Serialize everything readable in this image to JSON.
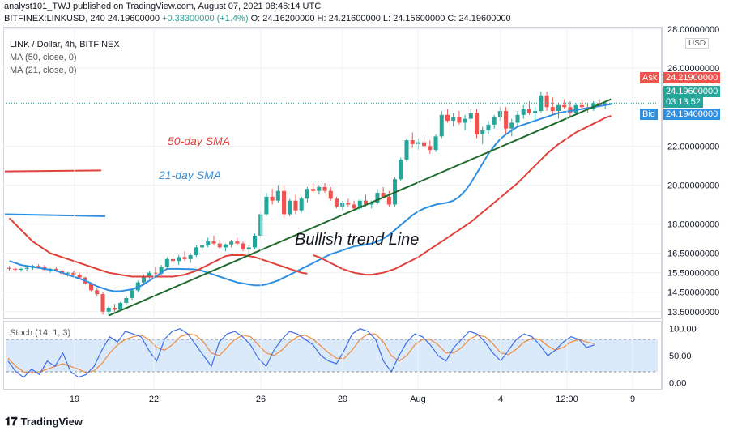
{
  "header": {
    "line1_prefix": "analyst101_TWJ published on TradingView.com, August 07, 2021 08:46:14 UTC",
    "line2_symbol": "BITFINEX:LINKUSD, 240",
    "line2_price": "24.19600000",
    "line2_change": "+0.33300000 (+1.4%)",
    "line2_ohlc": "O: 24.16200000 H: 24.21600000 L: 24.15600000 C: 24.19600000"
  },
  "legend": {
    "title": "LINK / Dollar, 4h, BITFINEX",
    "ma50": "MA (50, close, 0)",
    "ma21": "MA (21, close, 0)",
    "stoch": "Stoch (14, 1, 3)"
  },
  "annotations": {
    "sma50": "50-day SMA",
    "sma21": "21-day SMA",
    "trend": "Bullish trend Line"
  },
  "price_axis": {
    "unit": "USD",
    "ticks": [
      "28.00000000",
      "26.00000000",
      "22.00000000",
      "20.00000000",
      "18.00000000",
      "16.50000000",
      "15.50000000",
      "14.50000000",
      "13.50000000"
    ],
    "ask_label": "Ask",
    "ask_value": "24.21900000",
    "last_value": "24.19600000",
    "countdown": "03:13:52",
    "bid_label": "Bid",
    "bid_value": "24.19400000"
  },
  "stoch_axis": {
    "ticks": [
      "100.00",
      "50.00",
      "0.00"
    ]
  },
  "time_axis": {
    "ticks": [
      "19",
      "22",
      "26",
      "29",
      "Aug",
      "4",
      "12:00",
      "9"
    ]
  },
  "logo": "TradingView",
  "colors": {
    "up": "#26a69a",
    "down": "#ef5350",
    "ma50": "#e0413a",
    "ma21": "#2e8ee0",
    "trend": "#1f6b2c",
    "stoch_k": "#3d6ee8",
    "stoch_d": "#f08a3c",
    "stoch_band": "#dbeafb",
    "ask": "#ef5350",
    "last": "#26a69a",
    "bid": "#2e8ee0"
  },
  "chart_data": {
    "type": "candlestick",
    "title": "LINK / Dollar, 4h, BITFINEX",
    "price_range": [
      13.2,
      28.0
    ],
    "candles": [
      [
        15.75,
        15.85,
        15.6,
        15.7
      ],
      [
        15.7,
        15.8,
        15.55,
        15.65
      ],
      [
        15.65,
        15.75,
        15.55,
        15.7
      ],
      [
        15.7,
        15.8,
        15.6,
        15.75
      ],
      [
        15.75,
        15.9,
        15.65,
        15.85
      ],
      [
        15.85,
        15.95,
        15.7,
        15.8
      ],
      [
        15.8,
        15.9,
        15.6,
        15.65
      ],
      [
        15.65,
        15.75,
        15.5,
        15.7
      ],
      [
        15.7,
        15.8,
        15.55,
        15.6
      ],
      [
        15.6,
        15.7,
        15.4,
        15.45
      ],
      [
        15.45,
        15.55,
        15.3,
        15.5
      ],
      [
        15.5,
        15.6,
        15.35,
        15.4
      ],
      [
        15.4,
        15.5,
        15.2,
        15.25
      ],
      [
        15.25,
        15.3,
        14.9,
        14.95
      ],
      [
        14.95,
        15.0,
        14.55,
        14.6
      ],
      [
        14.6,
        14.7,
        14.3,
        14.4
      ],
      [
        14.4,
        14.5,
        13.35,
        13.5
      ],
      [
        13.5,
        13.8,
        13.3,
        13.7
      ],
      [
        13.7,
        13.9,
        13.5,
        13.6
      ],
      [
        13.6,
        14.0,
        13.55,
        13.95
      ],
      [
        13.95,
        14.3,
        13.85,
        14.2
      ],
      [
        14.2,
        14.7,
        14.1,
        14.6
      ],
      [
        14.6,
        15.1,
        14.5,
        15.0
      ],
      [
        15.0,
        15.4,
        14.9,
        15.3
      ],
      [
        15.3,
        15.6,
        15.2,
        15.5
      ],
      [
        15.5,
        15.8,
        15.35,
        15.45
      ],
      [
        15.45,
        15.9,
        15.4,
        15.8
      ],
      [
        15.8,
        16.3,
        15.7,
        16.2
      ],
      [
        16.2,
        16.5,
        16.0,
        16.1
      ],
      [
        16.1,
        16.4,
        15.9,
        16.3
      ],
      [
        16.3,
        16.6,
        16.1,
        16.2
      ],
      [
        16.2,
        16.5,
        16.0,
        16.4
      ],
      [
        16.4,
        16.9,
        16.3,
        16.8
      ],
      [
        16.8,
        17.2,
        16.6,
        16.9
      ],
      [
        16.9,
        17.3,
        16.8,
        17.1
      ],
      [
        17.1,
        17.4,
        16.9,
        17.0
      ],
      [
        17.0,
        17.2,
        16.7,
        16.8
      ],
      [
        16.8,
        17.0,
        16.6,
        16.95
      ],
      [
        16.95,
        17.2,
        16.8,
        17.1
      ],
      [
        17.1,
        17.3,
        16.9,
        17.0
      ],
      [
        17.0,
        17.1,
        16.6,
        16.7
      ],
      [
        16.7,
        16.9,
        16.5,
        16.8
      ],
      [
        16.8,
        17.5,
        16.7,
        17.4
      ],
      [
        17.4,
        18.6,
        17.3,
        18.5
      ],
      [
        18.5,
        19.6,
        18.4,
        19.4
      ],
      [
        19.4,
        19.8,
        19.0,
        19.2
      ],
      [
        19.2,
        20.0,
        19.1,
        19.7
      ],
      [
        19.7,
        20.0,
        18.3,
        18.5
      ],
      [
        18.5,
        19.3,
        18.4,
        19.2
      ],
      [
        19.2,
        19.5,
        18.5,
        18.7
      ],
      [
        18.7,
        19.4,
        18.6,
        19.3
      ],
      [
        19.3,
        19.9,
        19.1,
        19.8
      ],
      [
        19.8,
        20.1,
        19.6,
        19.7
      ],
      [
        19.7,
        20.0,
        19.5,
        19.9
      ],
      [
        19.9,
        20.1,
        19.6,
        19.7
      ],
      [
        19.7,
        19.9,
        19.2,
        19.3
      ],
      [
        19.3,
        19.4,
        18.8,
        18.9
      ],
      [
        18.9,
        19.2,
        18.7,
        19.1
      ],
      [
        19.1,
        19.3,
        18.9,
        19.0
      ],
      [
        19.0,
        19.2,
        18.7,
        18.8
      ],
      [
        18.8,
        19.3,
        18.7,
        19.2
      ],
      [
        19.2,
        19.5,
        18.9,
        19.0
      ],
      [
        19.0,
        19.2,
        18.8,
        19.1
      ],
      [
        19.1,
        19.8,
        19.0,
        19.6
      ],
      [
        19.6,
        19.9,
        19.3,
        19.4
      ],
      [
        19.4,
        19.7,
        18.9,
        19.0
      ],
      [
        19.0,
        20.4,
        18.9,
        20.3
      ],
      [
        20.3,
        21.4,
        20.2,
        21.3
      ],
      [
        21.3,
        22.4,
        21.2,
        22.3
      ],
      [
        22.3,
        22.7,
        21.9,
        22.1
      ],
      [
        22.1,
        22.4,
        21.8,
        22.2
      ],
      [
        22.2,
        22.6,
        21.9,
        22.0
      ],
      [
        22.0,
        22.3,
        21.6,
        21.8
      ],
      [
        21.8,
        22.6,
        21.7,
        22.5
      ],
      [
        22.5,
        23.8,
        22.4,
        23.6
      ],
      [
        23.6,
        23.9,
        23.2,
        23.3
      ],
      [
        23.3,
        23.7,
        23.0,
        23.5
      ],
      [
        23.5,
        23.8,
        23.1,
        23.2
      ],
      [
        23.2,
        23.6,
        22.8,
        23.4
      ],
      [
        23.4,
        23.9,
        23.2,
        23.7
      ],
      [
        23.7,
        23.9,
        22.4,
        22.6
      ],
      [
        22.6,
        23.0,
        22.1,
        22.8
      ],
      [
        22.8,
        23.3,
        22.6,
        23.1
      ],
      [
        23.1,
        23.6,
        22.9,
        23.5
      ],
      [
        23.5,
        24.0,
        23.3,
        23.8
      ],
      [
        23.8,
        24.0,
        22.6,
        22.9
      ],
      [
        22.9,
        23.4,
        22.5,
        23.2
      ],
      [
        23.2,
        23.8,
        23.0,
        23.6
      ],
      [
        23.6,
        24.1,
        23.4,
        23.9
      ],
      [
        23.9,
        24.3,
        23.6,
        23.7
      ],
      [
        23.7,
        24.0,
        23.3,
        23.8
      ],
      [
        23.8,
        24.8,
        23.7,
        24.6
      ],
      [
        24.6,
        24.8,
        23.8,
        24.0
      ],
      [
        24.0,
        24.5,
        23.6,
        23.8
      ],
      [
        23.8,
        24.2,
        23.4,
        24.1
      ],
      [
        24.1,
        24.4,
        23.9,
        24.0
      ],
      [
        24.0,
        24.3,
        23.5,
        23.7
      ],
      [
        23.7,
        24.2,
        23.6,
        24.1
      ],
      [
        24.1,
        24.4,
        23.9,
        24.0
      ],
      [
        24.0,
        24.2,
        23.7,
        23.9
      ],
      [
        23.9,
        24.3,
        23.8,
        24.2
      ],
      [
        24.2,
        24.4,
        24.0,
        24.1
      ],
      [
        24.1,
        24.3,
        23.9,
        24.2
      ],
      [
        24.16,
        24.216,
        24.156,
        24.196
      ]
    ],
    "ma21": [
      15.7,
      15.7,
      15.69,
      15.68,
      15.66,
      15.6,
      15.5,
      15.4,
      15.3,
      15.2,
      15.1,
      15.0,
      14.95,
      14.9,
      14.85,
      14.85,
      14.9,
      15.0,
      15.1,
      15.25,
      15.4,
      15.55,
      15.7,
      15.85,
      16.0,
      16.15,
      16.3,
      16.45,
      16.55,
      16.65,
      16.75,
      16.85,
      16.9,
      16.95,
      17.0,
      17.1,
      17.25,
      17.45,
      17.7,
      17.95,
      18.2,
      18.45,
      18.65,
      18.8,
      18.9,
      19.0,
      19.05,
      19.1,
      19.2,
      19.4,
      19.7,
      20.1,
      20.6,
      21.1,
      21.6,
      22.0,
      22.35,
      22.6,
      22.8,
      23.0,
      23.1,
      23.2,
      23.3,
      23.4,
      23.5,
      23.6,
      23.7,
      23.75,
      23.8,
      23.85,
      23.9,
      23.95,
      24.0,
      24.05,
      24.1,
      24.15
    ],
    "ma21_start": 28,
    "ma50": [
      16.4,
      16.3,
      16.15,
      16.0,
      15.85,
      15.7,
      15.6,
      15.5,
      15.45,
      15.4,
      15.4,
      15.45,
      15.5,
      15.6,
      15.7,
      15.85,
      16.0,
      16.15,
      16.3,
      16.5,
      16.7,
      16.9,
      17.1,
      17.3,
      17.5,
      17.7,
      17.9,
      18.1,
      18.35,
      18.6,
      18.85,
      19.1,
      19.35,
      19.6,
      19.85,
      20.1,
      20.4,
      20.7,
      21.0,
      21.3,
      21.6,
      21.85,
      22.1,
      22.3,
      22.5,
      22.7,
      22.85,
      23.0,
      23.15,
      23.3,
      23.45,
      23.55
    ],
    "ma50_start": 52,
    "trend_line": [
      [
        17,
        13.3
      ],
      [
        103,
        24.4
      ]
    ],
    "stoch": {
      "range": [
        -10,
        110
      ],
      "bands": [
        80,
        20
      ],
      "k": [
        40,
        20,
        10,
        25,
        15,
        40,
        30,
        55,
        20,
        10,
        15,
        30,
        60,
        85,
        75,
        95,
        90,
        85,
        60,
        40,
        80,
        95,
        100,
        90,
        70,
        50,
        30,
        75,
        90,
        95,
        85,
        70,
        45,
        30,
        60,
        80,
        95,
        90,
        80,
        70,
        50,
        40,
        35,
        60,
        90,
        100,
        95,
        80,
        40,
        20,
        50,
        75,
        90,
        85,
        70,
        50,
        40,
        65,
        80,
        95,
        90,
        75,
        55,
        40,
        60,
        80,
        90,
        85,
        70,
        50,
        60,
        75,
        85,
        80,
        65,
        70
      ],
      "d": [
        45,
        30,
        20,
        18,
        20,
        25,
        30,
        35,
        30,
        25,
        18,
        22,
        35,
        55,
        70,
        80,
        85,
        88,
        80,
        65,
        60,
        70,
        85,
        90,
        88,
        75,
        55,
        50,
        65,
        80,
        88,
        85,
        70,
        55,
        50,
        60,
        75,
        85,
        88,
        80,
        68,
        55,
        45,
        45,
        60,
        80,
        90,
        90,
        75,
        50,
        40,
        50,
        70,
        80,
        80,
        70,
        55,
        55,
        65,
        80,
        88,
        85,
        72,
        55,
        52,
        62,
        75,
        82,
        80,
        68,
        60,
        65,
        75,
        80,
        75,
        72
      ]
    }
  }
}
